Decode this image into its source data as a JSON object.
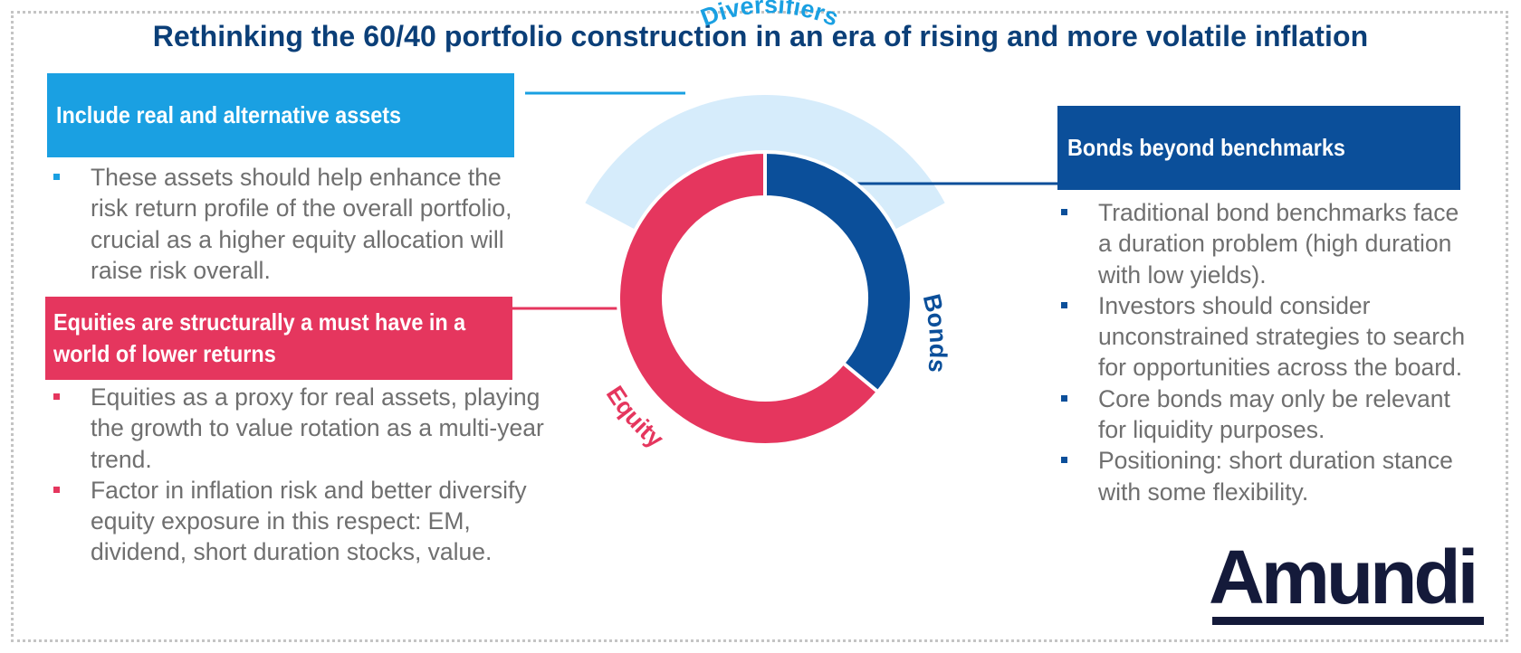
{
  "title": "Rethinking the 60/40 portfolio construction in an era of rising and more volatile inflation",
  "colors": {
    "title": "#0b3f78",
    "real_assets": "#1aa0e2",
    "equity": "#e5365e",
    "bonds": "#0b4f9a",
    "diversifiers_band": "#d6ecfb",
    "body_text": "#6f6f6f"
  },
  "donut": {
    "segments": [
      {
        "label": "Bonds",
        "share": 0.36
      },
      {
        "label": "Equity",
        "share": 0.64
      }
    ],
    "band_label": "Diversifiers"
  },
  "real_assets": {
    "heading": "Include real and alternative assets",
    "bullets": [
      "These assets should help enhance the risk return profile of the overall portfolio, crucial as a higher equity allocation will raise risk overall."
    ]
  },
  "equities": {
    "heading": "Equities are structurally a must have in a world of lower returns",
    "bullets": [
      "Equities as a proxy for real assets, playing the growth to value rotation as a multi-year trend.",
      "Factor in inflation risk and better diversify equity exposure in this respect: EM, dividend, short duration stocks, value."
    ]
  },
  "bonds": {
    "heading": "Bonds beyond benchmarks",
    "bullets": [
      "Traditional bond benchmarks face a duration problem (high duration with low yields).",
      "Investors should consider unconstrained strategies to search for opportunities across the board.",
      "Core bonds may only be relevant for liquidity purposes.",
      "Positioning: short duration stance with some flexibility."
    ]
  },
  "logo": {
    "text": "Amundi"
  }
}
